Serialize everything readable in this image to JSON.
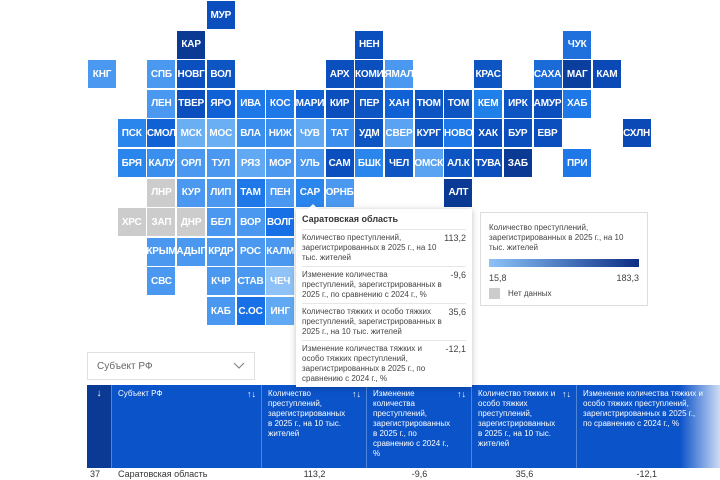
{
  "map": {
    "regions": [
      {
        "code": "МУР",
        "color": "#0b4fbf"
      },
      {
        "code": "КАР",
        "color": "#0a3a94"
      },
      {
        "code": "НЕН",
        "color": "#0b4fbf"
      },
      {
        "code": "ЧУК",
        "color": "#1f6fdc"
      },
      {
        "code": "КНГ",
        "color": "#4a98ef"
      },
      {
        "code": "СПБ",
        "color": "#4a98ef"
      },
      {
        "code": "НОВГ",
        "color": "#0b4fbf"
      },
      {
        "code": "ВОЛ",
        "color": "#0d55c2"
      },
      {
        "code": "АРХ",
        "color": "#0b4fbf"
      },
      {
        "code": "КОМИ",
        "color": "#0b4fbf"
      },
      {
        "code": "ЯМАЛ",
        "color": "#4a98ef"
      },
      {
        "code": "КРАС",
        "color": "#0d55c2"
      },
      {
        "code": "САХА",
        "color": "#1a6ad8"
      },
      {
        "code": "МАГ",
        "color": "#0a3f9e"
      },
      {
        "code": "КАМ",
        "color": "#0b4ab6"
      },
      {
        "code": "ЛЕН",
        "color": "#4a98ef"
      },
      {
        "code": "ТВЕР",
        "color": "#0b4fbf"
      },
      {
        "code": "ЯРО",
        "color": "#1060d6"
      },
      {
        "code": "ИВА",
        "color": "#1f78e8"
      },
      {
        "code": "КОС",
        "color": "#1f78e8"
      },
      {
        "code": "МАРИ",
        "color": "#1060d6"
      },
      {
        "code": "КИР",
        "color": "#0b4fbf"
      },
      {
        "code": "ПЕР",
        "color": "#0d55c2"
      },
      {
        "code": "ХАН",
        "color": "#1060d6"
      },
      {
        "code": "ТЮМ",
        "color": "#0d55c2"
      },
      {
        "code": "ТОМ",
        "color": "#0d55c2"
      },
      {
        "code": "КЕМ",
        "color": "#2080ea"
      },
      {
        "code": "ИРК",
        "color": "#0d55c2"
      },
      {
        "code": "АМУР",
        "color": "#0b4fbf"
      },
      {
        "code": "ХАБ",
        "color": "#1f78e8"
      },
      {
        "code": "ПСК",
        "color": "#2a85ec"
      },
      {
        "code": "СМОЛ",
        "color": "#1060d6"
      },
      {
        "code": "МСК",
        "color": "#6aaef4"
      },
      {
        "code": "МОС",
        "color": "#6aaef4"
      },
      {
        "code": "ВЛА",
        "color": "#3a8eee"
      },
      {
        "code": "НИЖ",
        "color": "#3a8eee"
      },
      {
        "code": "ЧУВ",
        "color": "#62a9f3"
      },
      {
        "code": "ТАТ",
        "color": "#3a8eee"
      },
      {
        "code": "УДМ",
        "color": "#0d55c2"
      },
      {
        "code": "СВЕР",
        "color": "#5aa2f2"
      },
      {
        "code": "КУРГ",
        "color": "#0d55c2"
      },
      {
        "code": "НОВО",
        "color": "#1f78e8"
      },
      {
        "code": "ХАК",
        "color": "#0b4fbf"
      },
      {
        "code": "БУР",
        "color": "#0b4fbf"
      },
      {
        "code": "ЕВР",
        "color": "#0b4fbf"
      },
      {
        "code": "СХЛН",
        "color": "#0b4ab6"
      },
      {
        "code": "БРЯ",
        "color": "#2a85ec"
      },
      {
        "code": "КАЛУ",
        "color": "#3a8eee"
      },
      {
        "code": "ОРЛ",
        "color": "#4a98ef"
      },
      {
        "code": "ТУЛ",
        "color": "#4a98ef"
      },
      {
        "code": "РЯЗ",
        "color": "#62a9f3"
      },
      {
        "code": "МОР",
        "color": "#4a98ef"
      },
      {
        "code": "УЛЬ",
        "color": "#4a98ef"
      },
      {
        "code": "САМ",
        "color": "#0b4fbf"
      },
      {
        "code": "БШК",
        "color": "#2a85ec"
      },
      {
        "code": "ЧЕЛ",
        "color": "#0d55c2"
      },
      {
        "code": "ОМСК",
        "color": "#5aa2f2"
      },
      {
        "code": "АЛ.К",
        "color": "#0d55c2"
      },
      {
        "code": "ТУВА",
        "color": "#0b4fbf"
      },
      {
        "code": "ЗАБ",
        "color": "#0a3a94"
      },
      {
        "code": "ПРИ",
        "color": "#1f78e8"
      },
      {
        "code": "ЛНР",
        "color": "#cccccc"
      },
      {
        "code": "КУР",
        "color": "#4a98ef"
      },
      {
        "code": "ЛИП",
        "color": "#4a98ef"
      },
      {
        "code": "ТАМ",
        "color": "#1f78e8"
      },
      {
        "code": "ПЕН",
        "color": "#4a98ef"
      },
      {
        "code": "САР",
        "color": "#2a85ec"
      },
      {
        "code": "ОРНБ",
        "color": "#4a98ef"
      },
      {
        "code": "АЛТ",
        "color": "#0a3a94"
      },
      {
        "code": "ХРС",
        "color": "#cccccc"
      },
      {
        "code": "ЗАП",
        "color": "#cccccc"
      },
      {
        "code": "ДНР",
        "color": "#cccccc"
      },
      {
        "code": "БЕЛ",
        "color": "#4a98ef"
      },
      {
        "code": "ВОР",
        "color": "#4a98ef"
      },
      {
        "code": "ВОЛГ",
        "color": "#1870e6"
      },
      {
        "code": "КРЫМ",
        "color": "#4a98ef"
      },
      {
        "code": "АДЫГ",
        "color": "#4a98ef"
      },
      {
        "code": "КРДР",
        "color": "#4a98ef"
      },
      {
        "code": "РОС",
        "color": "#4a98ef"
      },
      {
        "code": "КАЛМ",
        "color": "#4a98ef"
      },
      {
        "code": "СВС",
        "color": "#4a98ef"
      },
      {
        "code": "КЧР",
        "color": "#4a98ef"
      },
      {
        "code": "СТАВ",
        "color": "#4a98ef"
      },
      {
        "code": "ЧЕЧ",
        "color": "#8fc2f7"
      },
      {
        "code": "КАБ",
        "color": "#4a98ef"
      },
      {
        "code": "С.ОС",
        "color": "#1870e6"
      },
      {
        "code": "ИНГ",
        "color": "#62a9f3"
      }
    ]
  },
  "tooltip": {
    "title": "Саратовская область",
    "rows": [
      {
        "label": "Количество преступлений, зарегистрированных в 2025 г., на 10 тыс. жителей",
        "value": "113,2"
      },
      {
        "label": "Изменение количества преступлений, зарегистрированных в 2025 г., по сравнению с 2024 г., %",
        "value": "-9,6"
      },
      {
        "label": "Количество тяжких и особо тяжких преступлений, зарегистрированных в 2025 г., на 10 тыс. жителей",
        "value": "35,6"
      },
      {
        "label": "Изменение количества тяжких и особо тяжких преступлений, зарегистрированных в 2025 г., по сравнению с 2024 г., %",
        "value": "-12,1"
      }
    ]
  },
  "legend": {
    "title": "Количество преступлений, зарегистрированных в 2025 г., на 10 тыс. жителей",
    "min": "15,8",
    "max": "183,3",
    "no_data": "Нет данных"
  },
  "filter": {
    "value": "Субъект РФ"
  },
  "table": {
    "index_sort": "↓",
    "sort_icon": "↑↓",
    "headers": [
      "Субъект РФ",
      "Количество преступлений, зарегистрированных в 2025 г., на 10 тыс. жителей",
      "Изменение количества преступлений, зарегистрированных в 2025 г., по сравнению с 2024 г., %",
      "Количество тяжких и особо тяжких преступлений, зарегистрированных в 2025 г., на 10 тыс. жителей",
      "Изменение количества тяжких и особо тяжких преступлений, зарегистрированных в 2025 г., по сравнению с 2024 г., %"
    ],
    "rows": [
      {
        "rank": "37",
        "name": "Саратовская область",
        "c1": "113,2",
        "c2": "-9,6",
        "c3": "35,6",
        "c4": "-12,1"
      }
    ]
  }
}
